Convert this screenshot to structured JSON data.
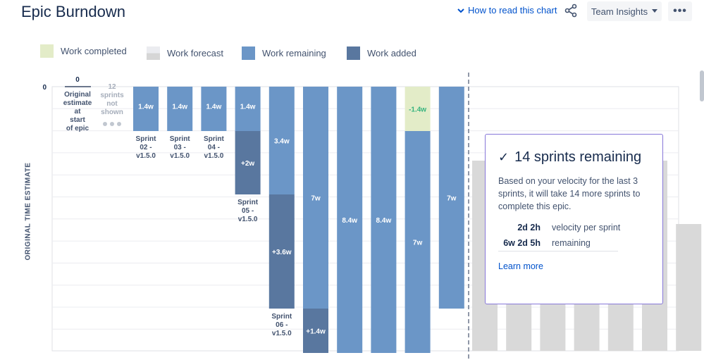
{
  "header": {
    "title": "Epic Burndown",
    "how_to_label": "How to read this chart",
    "team_insights_label": "Team Insights",
    "more_label": "•••"
  },
  "legend": [
    {
      "label": "Work completed",
      "color": "#e3ecc8"
    },
    {
      "label": "Work forecast",
      "color": "#d9d9d9"
    },
    {
      "label": "Work remaining",
      "color": "#6b96c7"
    },
    {
      "label": "Work added",
      "color": "#59779f"
    }
  ],
  "chart_data": {
    "type": "bar",
    "title": "Epic Burndown",
    "ylabel": "ORIGINAL TIME ESTIMATE",
    "y_axis_labels": [
      "0"
    ],
    "unit": "weeks",
    "columns": [
      {
        "label": [
          "Original",
          "estimate",
          "at",
          "start",
          "of epic"
        ],
        "total_label": "0",
        "segments": []
      },
      {
        "label": [
          "12",
          "sprints",
          "not",
          "shown"
        ],
        "segments": [],
        "skipped": true
      },
      {
        "label": [
          "Sprint",
          "02 -",
          "v1.5.0"
        ],
        "segments": [
          {
            "kind": "remaining",
            "value": 1.4,
            "label": "1.4w"
          }
        ]
      },
      {
        "label": [
          "Sprint",
          "03 -",
          "v1.5.0"
        ],
        "segments": [
          {
            "kind": "remaining",
            "value": 1.4,
            "label": "1.4w"
          }
        ]
      },
      {
        "label": [
          "Sprint",
          "04 -",
          "v1.5.0"
        ],
        "segments": [
          {
            "kind": "remaining",
            "value": 1.4,
            "label": "1.4w"
          }
        ]
      },
      {
        "label": [
          "Sprint",
          "05 -",
          "v1.5.0"
        ],
        "segments": [
          {
            "kind": "remaining",
            "value": 1.4,
            "label": "1.4w"
          },
          {
            "kind": "added",
            "value": 2.0,
            "label": "+2w"
          }
        ]
      },
      {
        "label": [
          "Sprint",
          "06 -",
          "v1.5.0"
        ],
        "segments": [
          {
            "kind": "remaining",
            "value": 3.4,
            "label": "3.4w"
          },
          {
            "kind": "added",
            "value": 3.6,
            "label": "+3.6w"
          }
        ]
      },
      {
        "label": [],
        "segments": [
          {
            "kind": "remaining",
            "value": 7.0,
            "label": "7w"
          },
          {
            "kind": "added",
            "value": 1.4,
            "label": "+1.4w"
          }
        ]
      },
      {
        "label": [],
        "segments": [
          {
            "kind": "remaining",
            "value": 8.4,
            "label": "8.4w"
          }
        ]
      },
      {
        "label": [],
        "segments": [
          {
            "kind": "remaining",
            "value": 8.4,
            "label": "8.4w"
          }
        ]
      },
      {
        "label": [],
        "segments": [
          {
            "kind": "completed",
            "value": 1.4,
            "label": "-1.4w"
          },
          {
            "kind": "remaining",
            "value": 7.0,
            "label": "7w"
          }
        ]
      },
      {
        "label": [],
        "segments": [
          {
            "kind": "remaining",
            "value": 7.0,
            "label": "7w"
          }
        ]
      }
    ],
    "forecast": [
      6.0,
      6.0,
      6.0,
      6.0,
      6.0,
      6.0,
      4.0
    ]
  },
  "forecast_card": {
    "check": "✓",
    "title": "14 sprints remaining",
    "description": "Based on your velocity for the last 3 sprints, it will take 14 more sprints to complete this epic.",
    "velocity_value": "2d 2h",
    "velocity_label": "velocity per sprint",
    "remaining_value": "6w 2d 5h",
    "remaining_label": "remaining",
    "learn_more": "Learn more"
  }
}
